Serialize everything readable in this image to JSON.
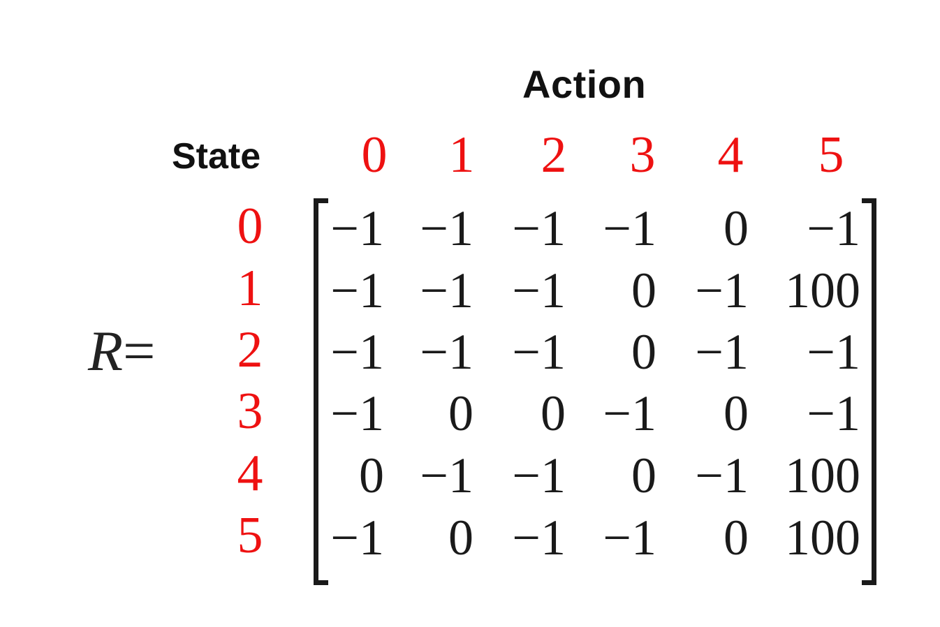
{
  "header": {
    "action_label": "Action",
    "state_label": "State"
  },
  "equation": {
    "symbol": "R",
    "equals": "="
  },
  "action_indices": [
    "0",
    "1",
    "2",
    "3",
    "4",
    "5"
  ],
  "state_indices": [
    "0",
    "1",
    "2",
    "3",
    "4",
    "5"
  ],
  "matrix": [
    [
      "−1",
      "−1",
      "−1",
      "−1",
      "0",
      "−1"
    ],
    [
      "−1",
      "−1",
      "−1",
      "0",
      "−1",
      "100"
    ],
    [
      "−1",
      "−1",
      "−1",
      "0",
      "−1",
      "−1"
    ],
    [
      "−1",
      "0",
      "0",
      "−1",
      "0",
      "−1"
    ],
    [
      "0",
      "−1",
      "−1",
      "0",
      "−1",
      "100"
    ],
    [
      "−1",
      "0",
      "−1",
      "−1",
      "0",
      "100"
    ]
  ],
  "colors": {
    "index_color": "#ee1111",
    "text_color": "#1a1a1a"
  }
}
